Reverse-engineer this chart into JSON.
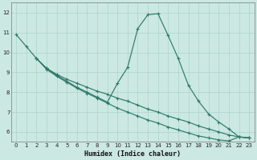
{
  "xlabel": "Humidex (Indice chaleur)",
  "background_color": "#cce8e3",
  "grid_color": "#aad4cc",
  "line_color": "#2d7a6a",
  "xlim": [
    -0.5,
    23.5
  ],
  "ylim": [
    5.5,
    12.5
  ],
  "xticks": [
    0,
    1,
    2,
    3,
    4,
    5,
    6,
    7,
    8,
    9,
    10,
    11,
    12,
    13,
    14,
    15,
    16,
    17,
    18,
    19,
    20,
    21,
    22,
    23
  ],
  "yticks": [
    6,
    7,
    8,
    9,
    10,
    11,
    12
  ],
  "curves": [
    {
      "x": [
        0,
        1,
        2,
        3,
        4,
        5,
        6,
        7,
        8,
        9,
        10,
        11,
        12,
        13,
        14,
        15,
        16,
        17,
        18,
        19,
        20,
        21,
        22,
        23
      ],
      "y": [
        10.9,
        10.3,
        9.7,
        9.2,
        8.85,
        8.55,
        8.25,
        8.0,
        7.75,
        7.5,
        8.45,
        9.25,
        11.2,
        11.9,
        11.95,
        10.85,
        9.7,
        8.35,
        7.55,
        6.9,
        6.5,
        6.15,
        5.75,
        5.7
      ]
    },
    {
      "x": [
        2,
        3,
        4,
        5,
        6,
        7,
        8,
        9,
        10,
        11,
        12,
        13,
        14,
        15,
        16,
        17,
        18,
        19,
        20,
        21,
        22,
        23
      ],
      "y": [
        9.7,
        9.2,
        8.9,
        8.65,
        8.45,
        8.25,
        8.05,
        7.9,
        7.7,
        7.55,
        7.35,
        7.15,
        7.0,
        6.8,
        6.65,
        6.5,
        6.3,
        6.15,
        6.0,
        5.85,
        5.75,
        5.7
      ]
    },
    {
      "x": [
        2,
        3,
        4,
        5,
        6,
        7,
        8,
        9,
        10,
        11,
        12,
        13,
        14,
        15,
        16,
        17,
        18,
        19,
        20,
        21,
        22,
        23
      ],
      "y": [
        9.7,
        9.15,
        8.8,
        8.5,
        8.2,
        7.95,
        7.7,
        7.45,
        7.2,
        7.0,
        6.8,
        6.6,
        6.45,
        6.25,
        6.1,
        5.95,
        5.8,
        5.7,
        5.6,
        5.55,
        5.75,
        5.7
      ]
    }
  ]
}
